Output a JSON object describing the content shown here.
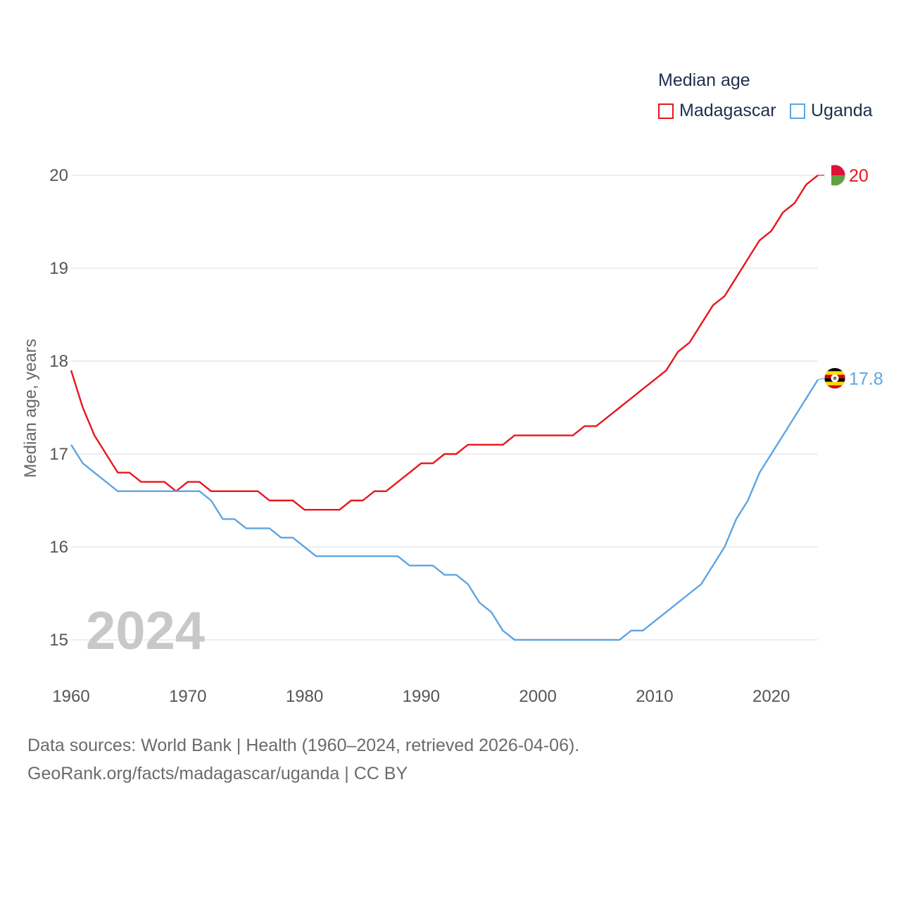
{
  "legend": {
    "title": "Median age",
    "items": [
      {
        "label": "Madagascar",
        "color": "#e8161b"
      },
      {
        "label": "Uganda",
        "color": "#5da5e3"
      }
    ]
  },
  "footer": {
    "line1": "Data sources: World Bank | Health (1960–2024, retrieved 2026-04-06).",
    "line2": "GeoRank.org/facts/madagascar/uganda | CC BY"
  },
  "chart_data": {
    "type": "line",
    "title": "Median age",
    "ylabel": "Median age, years",
    "xlabel": "",
    "year_label": "2024",
    "x": [
      1960,
      1961,
      1962,
      1963,
      1964,
      1965,
      1966,
      1967,
      1968,
      1969,
      1970,
      1971,
      1972,
      1973,
      1974,
      1975,
      1976,
      1977,
      1978,
      1979,
      1980,
      1981,
      1982,
      1983,
      1984,
      1985,
      1986,
      1987,
      1988,
      1989,
      1990,
      1991,
      1992,
      1993,
      1994,
      1995,
      1996,
      1997,
      1998,
      1999,
      2000,
      2001,
      2002,
      2003,
      2004,
      2005,
      2006,
      2007,
      2008,
      2009,
      2010,
      2011,
      2012,
      2013,
      2014,
      2015,
      2016,
      2017,
      2018,
      2019,
      2020,
      2021,
      2022,
      2023,
      2024
    ],
    "xlim": [
      1960,
      2024
    ],
    "ylim": [
      15,
      20
    ],
    "xticks": [
      1960,
      1970,
      1980,
      1990,
      2000,
      2010,
      2020
    ],
    "yticks": [
      15,
      16,
      17,
      18,
      19,
      20
    ],
    "grid": true,
    "series": [
      {
        "name": "Madagascar",
        "color": "#e8161b",
        "end_label": "20",
        "values": [
          17.9,
          17.5,
          17.2,
          17.0,
          16.8,
          16.8,
          16.7,
          16.7,
          16.7,
          16.6,
          16.7,
          16.7,
          16.6,
          16.6,
          16.6,
          16.6,
          16.6,
          16.5,
          16.5,
          16.5,
          16.4,
          16.4,
          16.4,
          16.4,
          16.5,
          16.5,
          16.6,
          16.6,
          16.7,
          16.8,
          16.9,
          16.9,
          17.0,
          17.0,
          17.1,
          17.1,
          17.1,
          17.1,
          17.2,
          17.2,
          17.2,
          17.2,
          17.2,
          17.2,
          17.3,
          17.3,
          17.4,
          17.5,
          17.6,
          17.7,
          17.8,
          17.9,
          18.1,
          18.2,
          18.4,
          18.6,
          18.7,
          18.9,
          19.1,
          19.3,
          19.4,
          19.6,
          19.7,
          19.9,
          20.0
        ]
      },
      {
        "name": "Uganda",
        "color": "#5da5e3",
        "end_label": "17.8",
        "values": [
          17.1,
          16.9,
          16.8,
          16.7,
          16.6,
          16.6,
          16.6,
          16.6,
          16.6,
          16.6,
          16.6,
          16.6,
          16.5,
          16.3,
          16.3,
          16.2,
          16.2,
          16.2,
          16.1,
          16.1,
          16.0,
          15.9,
          15.9,
          15.9,
          15.9,
          15.9,
          15.9,
          15.9,
          15.9,
          15.8,
          15.8,
          15.8,
          15.7,
          15.7,
          15.6,
          15.4,
          15.3,
          15.1,
          15.0,
          15.0,
          15.0,
          15.0,
          15.0,
          15.0,
          15.0,
          15.0,
          15.0,
          15.0,
          15.1,
          15.1,
          15.2,
          15.3,
          15.4,
          15.5,
          15.6,
          15.8,
          16.0,
          16.3,
          16.5,
          16.8,
          17.0,
          17.2,
          17.4,
          17.6,
          17.8
        ]
      }
    ]
  }
}
